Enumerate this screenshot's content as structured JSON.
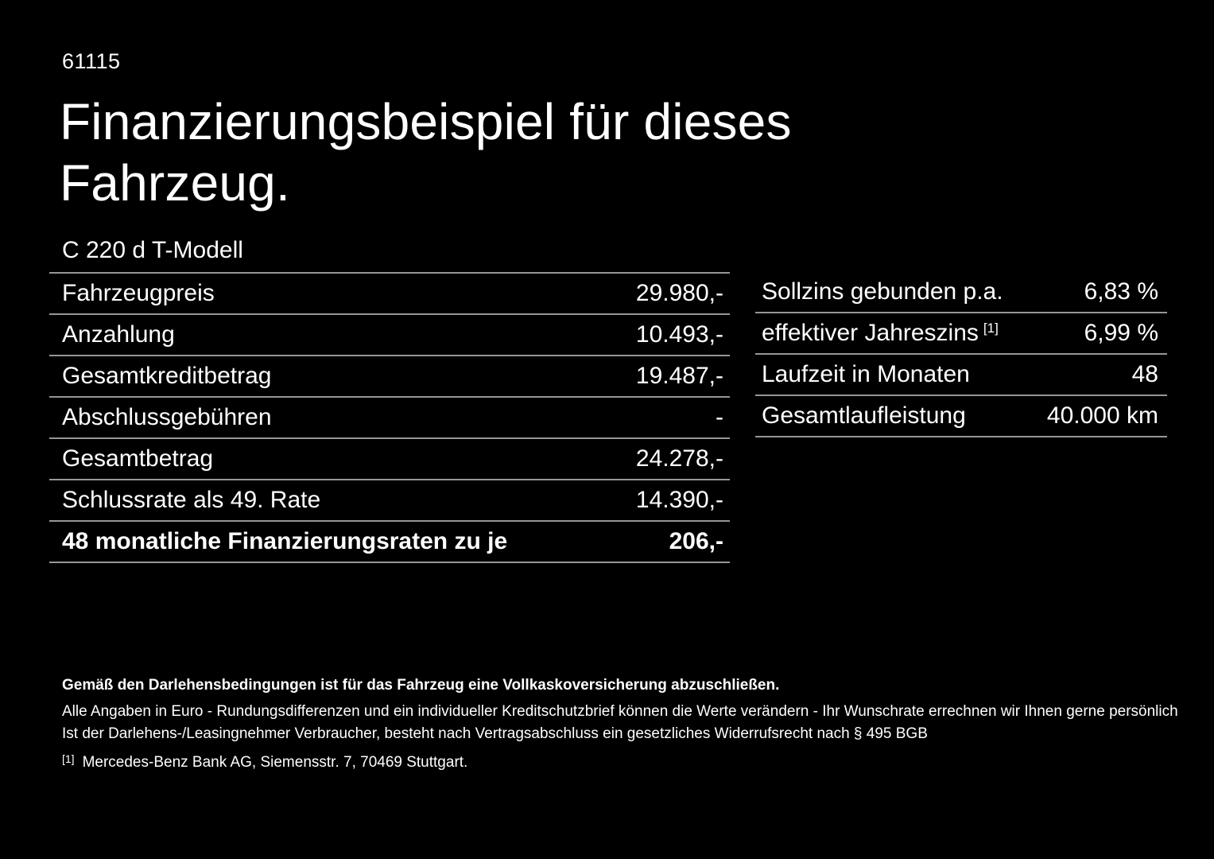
{
  "colors": {
    "background": "#000000",
    "text": "#ffffff",
    "divider": "#969696"
  },
  "header": {
    "page_number": "61115",
    "title_line1": "Finanzierungsbeispiel für dieses",
    "title_line2": "Fahrzeug.",
    "vehicle_model": "C 220 d T-Modell"
  },
  "finance_table": {
    "rows": [
      {
        "label": "Fahrzeugpreis",
        "value": "29.980,-"
      },
      {
        "label": "Anzahlung",
        "value": "10.493,-"
      },
      {
        "label": "Gesamtkreditbetrag",
        "value": "19.487,-"
      },
      {
        "label": "Abschlussgebühren",
        "value": "-"
      },
      {
        "label": "Gesamtbetrag",
        "value": "24.278,-"
      },
      {
        "label": "Schlussrate als 49. Rate",
        "value": "14.390,-"
      },
      {
        "label": "48 monatliche Finanzierungsraten zu je",
        "value": "206,-"
      }
    ]
  },
  "conditions_table": {
    "rows": [
      {
        "label": "Sollzins gebunden p.a.",
        "sup": "",
        "value": "6,83 %"
      },
      {
        "label": "effektiver Jahreszins",
        "sup": "[1]",
        "value": "6,99 %"
      },
      {
        "label": "Laufzeit in Monaten",
        "sup": "",
        "value": "48"
      },
      {
        "label": "Gesamtlaufleistung",
        "sup": "",
        "value": "40.000 km"
      }
    ]
  },
  "footnotes": {
    "insurance_note": "Gemäß den Darlehensbedingungen ist für das Fahrzeug eine Vollkaskoversicherung abzuschließen.",
    "rounding_note": "Alle Angaben in Euro - Rundungsdifferenzen und ein individueller Kreditschutzbrief können die Werte verändern - Ihr Wunschrate errechnen wir Ihnen gerne persönlich",
    "withdrawal_note": "Ist der Darlehens-/Leasingnehmer Verbraucher, besteht nach Vertragsabschluss ein gesetzliches Widerrufsrecht nach § 495 BGB",
    "bank_ref_marker": "[1]",
    "bank_note": "Mercedes-Benz Bank AG, Siemensstr. 7, 70469 Stuttgart."
  }
}
